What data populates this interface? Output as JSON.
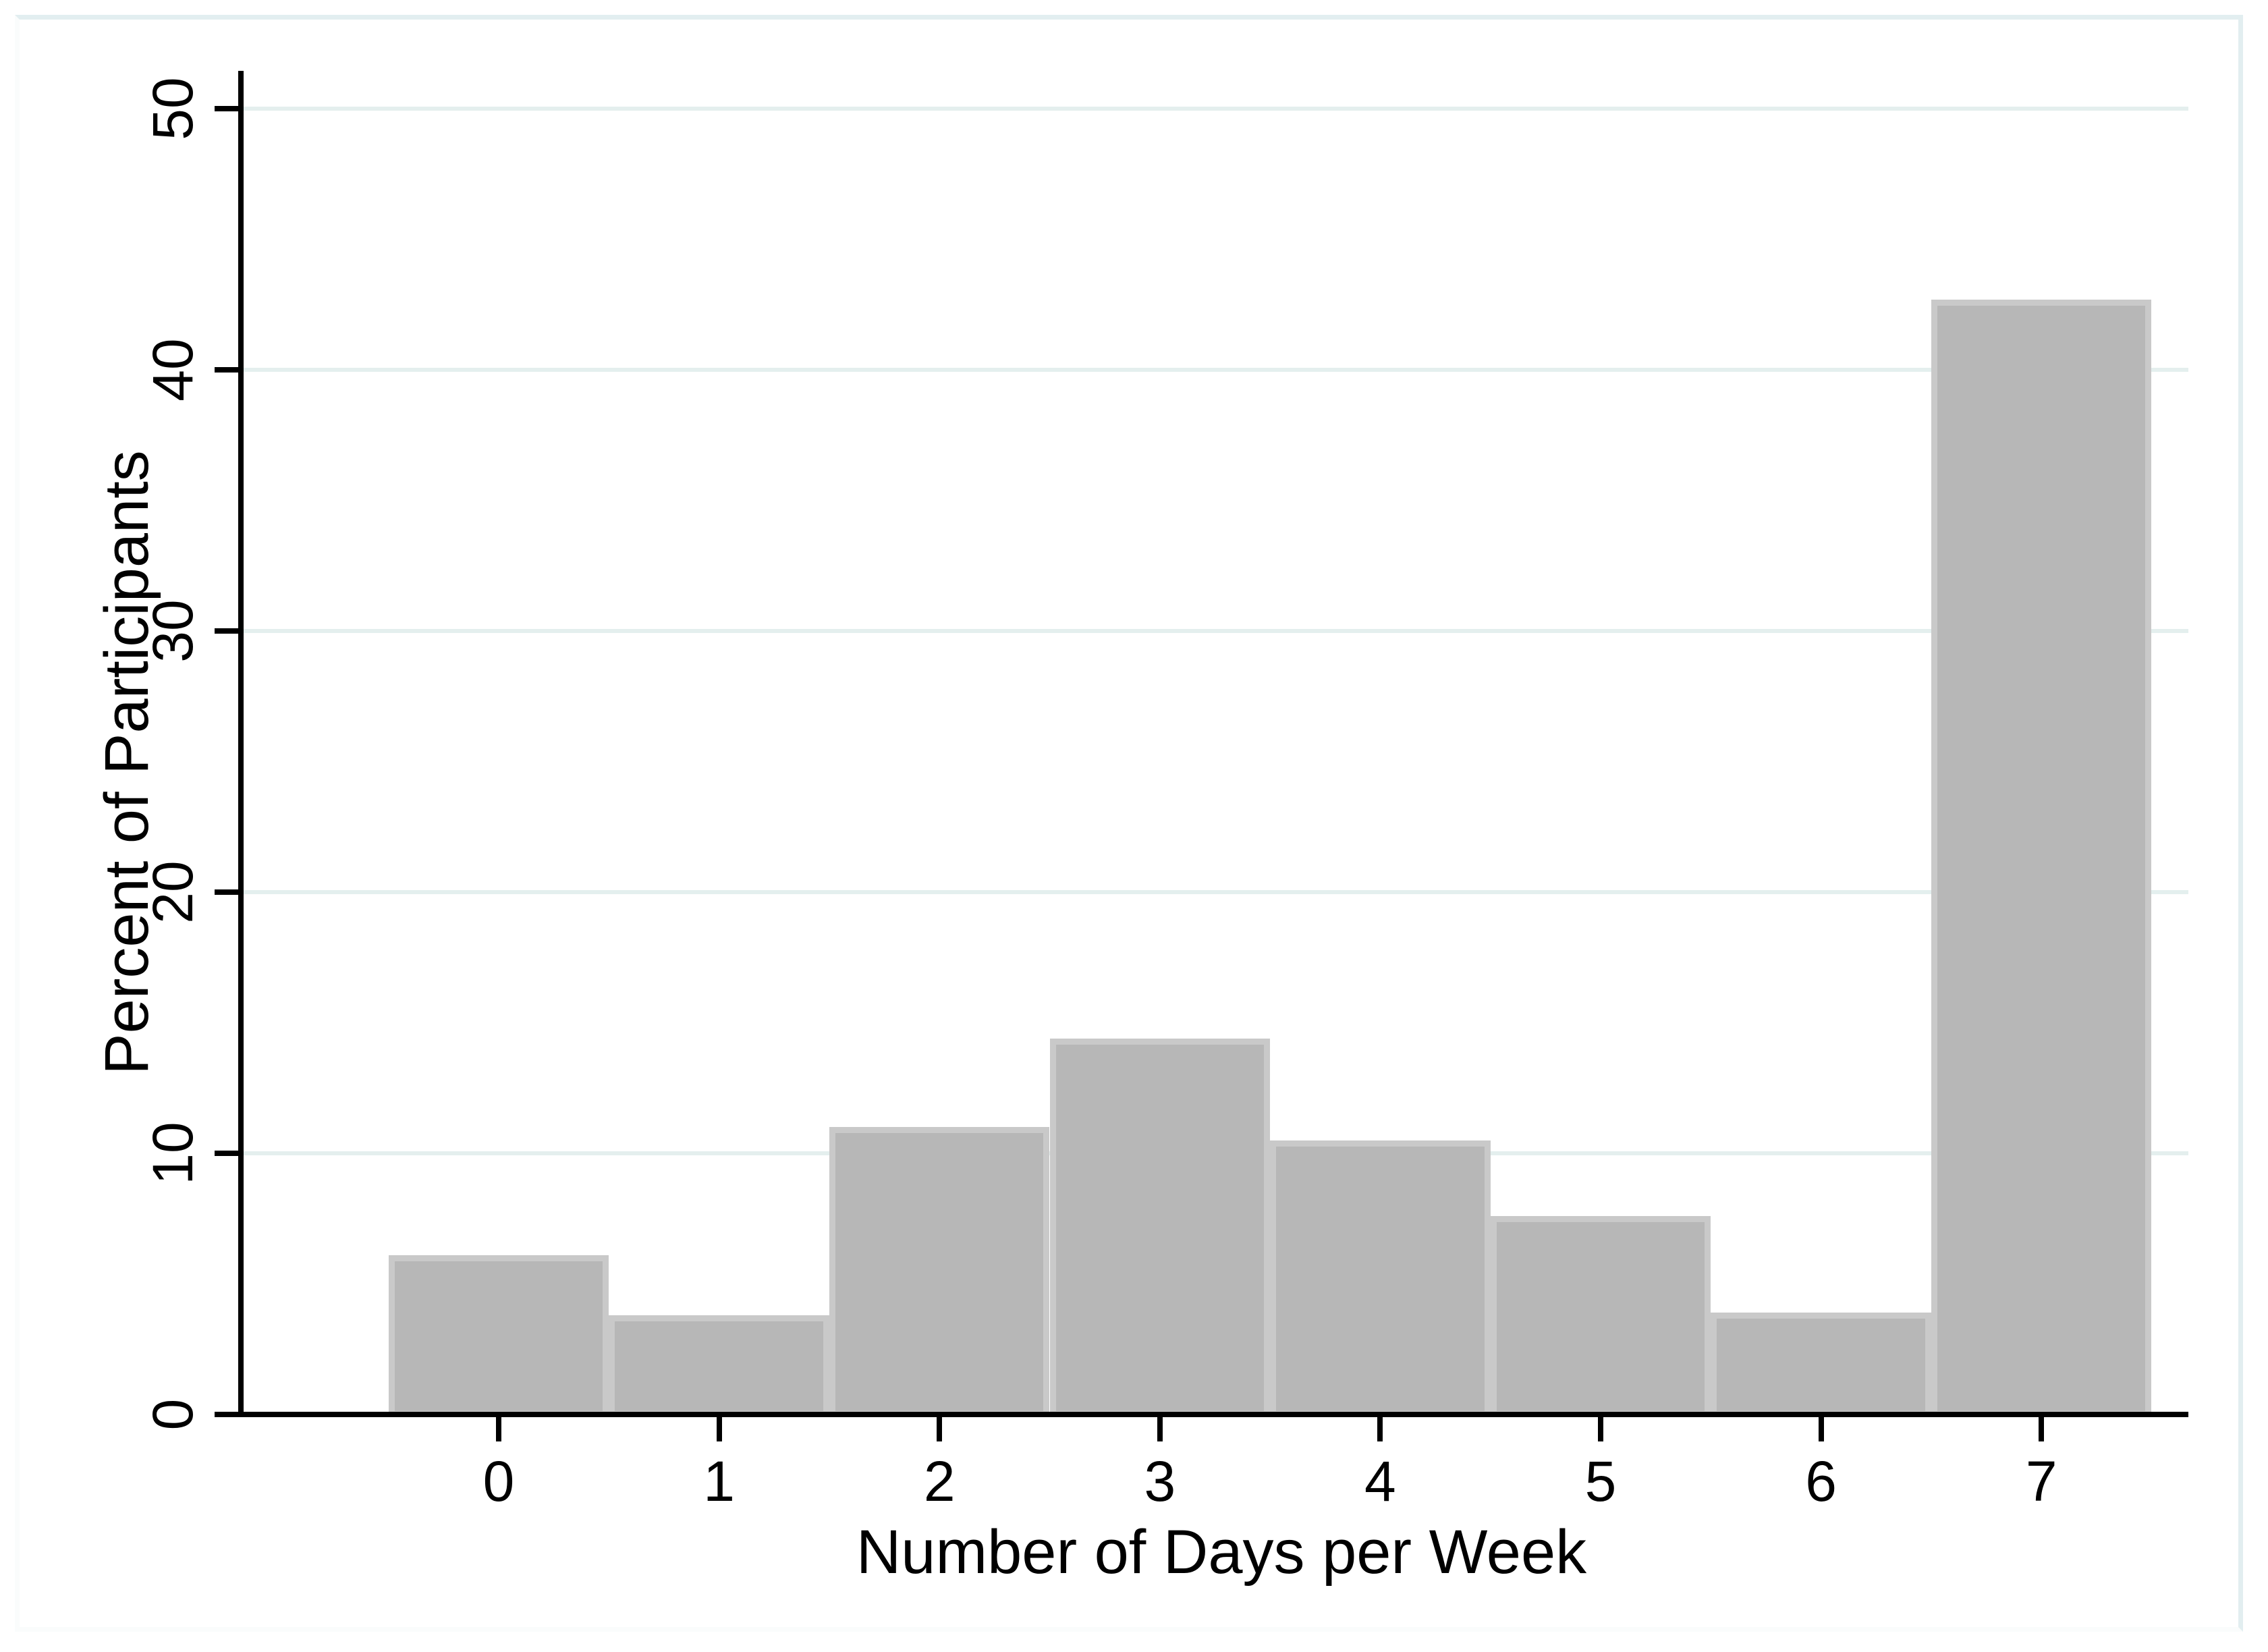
{
  "figure": {
    "background_color": "#ffffff",
    "plot_border_color": "#e2eef0"
  },
  "chart_data": {
    "type": "bar",
    "title": "",
    "xlabel": "Number of Days per Week",
    "ylabel": "Percent of Participants",
    "categories": [
      0,
      1,
      2,
      3,
      4,
      5,
      6,
      7
    ],
    "values": [
      6.1,
      3.8,
      11.0,
      14.4,
      10.5,
      7.6,
      3.9,
      42.7
    ],
    "x_tick_labels": [
      "0",
      "1",
      "2",
      "3",
      "4",
      "5",
      "6",
      "7"
    ],
    "y_ticks": [
      0,
      10,
      20,
      30,
      40,
      50
    ],
    "y_tick_labels": [
      "0",
      "10",
      "20",
      "30",
      "40",
      "50"
    ],
    "ylim": [
      0,
      50
    ],
    "bin_width": 1,
    "grid": "horizontal gridlines at 10,20,30,40,50",
    "legend_position": "none",
    "y_label_rotation_deg": 90,
    "bar_fill_color": "#b7b7b7",
    "bar_border_color": "#c9c9c9",
    "gridline_color": "#e4efee",
    "axis_color": "#000000",
    "text_color": "#000000"
  }
}
